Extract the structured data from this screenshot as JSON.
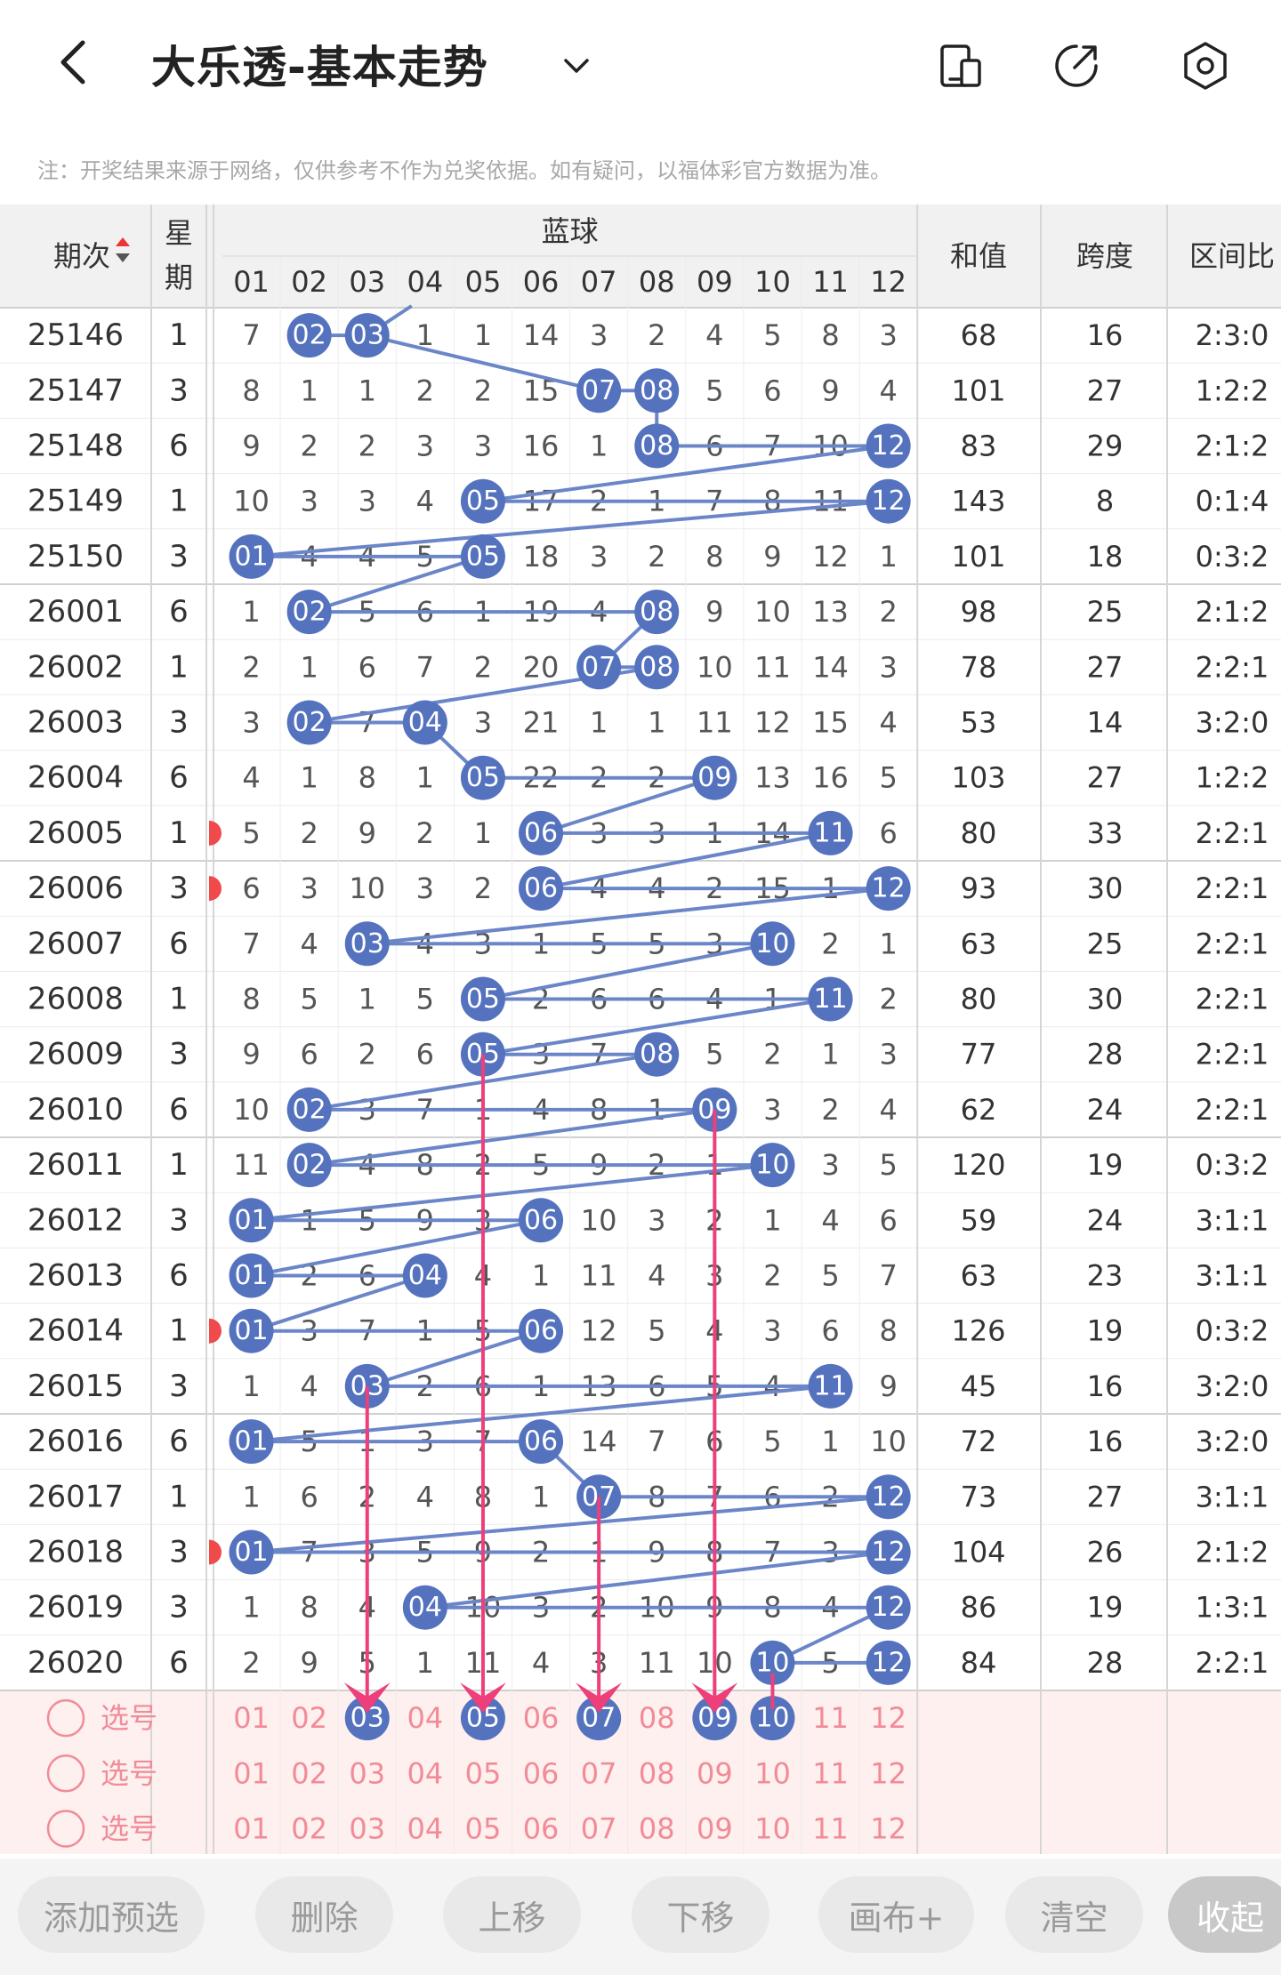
{
  "header": {
    "title": "大乐透-基本走势"
  },
  "notice": "注：开奖结果来源于网络，仅供参考不作为兑奖依据。如有疑问，以福体彩官方数据为准。",
  "table": {
    "col_issue": "期次",
    "col_week": [
      "星",
      "期"
    ],
    "col_blue": "蓝球",
    "col_sum": "和值",
    "col_span": "跨度",
    "col_ratio": "区间比",
    "numbers": [
      "01",
      "02",
      "03",
      "04",
      "05",
      "06",
      "07",
      "08",
      "09",
      "10",
      "11",
      "12"
    ],
    "rows": [
      {
        "issue": "25146",
        "week": "1",
        "cells": [
          "7",
          "02",
          "03",
          "1",
          "1",
          "14",
          "3",
          "2",
          "4",
          "5",
          "8",
          "3"
        ],
        "hits": [
          2,
          3
        ],
        "sum": "68",
        "span": "16",
        "ratio": "2:3:0",
        "mark": false
      },
      {
        "issue": "25147",
        "week": "3",
        "cells": [
          "8",
          "1",
          "1",
          "2",
          "2",
          "15",
          "07",
          "08",
          "5",
          "6",
          "9",
          "4"
        ],
        "hits": [
          7,
          8
        ],
        "sum": "101",
        "span": "27",
        "ratio": "1:2:2",
        "mark": false
      },
      {
        "issue": "25148",
        "week": "6",
        "cells": [
          "9",
          "2",
          "2",
          "3",
          "3",
          "16",
          "1",
          "08",
          "6",
          "7",
          "10",
          "12"
        ],
        "hits": [
          8,
          12
        ],
        "sum": "83",
        "span": "29",
        "ratio": "2:1:2",
        "mark": false
      },
      {
        "issue": "25149",
        "week": "1",
        "cells": [
          "10",
          "3",
          "3",
          "4",
          "05",
          "17",
          "2",
          "1",
          "7",
          "8",
          "11",
          "12"
        ],
        "hits": [
          5,
          12
        ],
        "sum": "143",
        "span": "8",
        "ratio": "0:1:4",
        "mark": false
      },
      {
        "issue": "25150",
        "week": "3",
        "cells": [
          "01",
          "4",
          "4",
          "5",
          "05",
          "18",
          "3",
          "2",
          "8",
          "9",
          "12",
          "1"
        ],
        "hits": [
          1,
          5
        ],
        "sum": "101",
        "span": "18",
        "ratio": "0:3:2",
        "mark": false
      },
      {
        "issue": "26001",
        "week": "6",
        "cells": [
          "1",
          "02",
          "5",
          "6",
          "1",
          "19",
          "4",
          "08",
          "9",
          "10",
          "13",
          "2"
        ],
        "hits": [
          2,
          8
        ],
        "sum": "98",
        "span": "25",
        "ratio": "2:1:2",
        "mark": false
      },
      {
        "issue": "26002",
        "week": "1",
        "cells": [
          "2",
          "1",
          "6",
          "7",
          "2",
          "20",
          "07",
          "08",
          "10",
          "11",
          "14",
          "3"
        ],
        "hits": [
          7,
          8
        ],
        "sum": "78",
        "span": "27",
        "ratio": "2:2:1",
        "mark": false
      },
      {
        "issue": "26003",
        "week": "3",
        "cells": [
          "3",
          "02",
          "7",
          "04",
          "3",
          "21",
          "1",
          "1",
          "11",
          "12",
          "15",
          "4"
        ],
        "hits": [
          2,
          4
        ],
        "sum": "53",
        "span": "14",
        "ratio": "3:2:0",
        "mark": false
      },
      {
        "issue": "26004",
        "week": "6",
        "cells": [
          "4",
          "1",
          "8",
          "1",
          "05",
          "22",
          "2",
          "2",
          "09",
          "13",
          "16",
          "5"
        ],
        "hits": [
          5,
          9
        ],
        "sum": "103",
        "span": "27",
        "ratio": "1:2:2",
        "mark": false
      },
      {
        "issue": "26005",
        "week": "1",
        "cells": [
          "5",
          "2",
          "9",
          "2",
          "1",
          "06",
          "3",
          "3",
          "1",
          "14",
          "11",
          "6"
        ],
        "hits": [
          6,
          11
        ],
        "sum": "80",
        "span": "33",
        "ratio": "2:2:1",
        "mark": true
      },
      {
        "issue": "26006",
        "week": "3",
        "cells": [
          "6",
          "3",
          "10",
          "3",
          "2",
          "06",
          "4",
          "4",
          "2",
          "15",
          "1",
          "12"
        ],
        "hits": [
          6,
          12
        ],
        "sum": "93",
        "span": "30",
        "ratio": "2:2:1",
        "mark": true
      },
      {
        "issue": "26007",
        "week": "6",
        "cells": [
          "7",
          "4",
          "03",
          "4",
          "3",
          "1",
          "5",
          "5",
          "3",
          "10",
          "2",
          "1"
        ],
        "hits": [
          3,
          10
        ],
        "sum": "63",
        "span": "25",
        "ratio": "2:2:1",
        "mark": false
      },
      {
        "issue": "26008",
        "week": "1",
        "cells": [
          "8",
          "5",
          "1",
          "5",
          "05",
          "2",
          "6",
          "6",
          "4",
          "1",
          "11",
          "2"
        ],
        "hits": [
          5,
          11
        ],
        "sum": "80",
        "span": "30",
        "ratio": "2:2:1",
        "mark": false
      },
      {
        "issue": "26009",
        "week": "3",
        "cells": [
          "9",
          "6",
          "2",
          "6",
          "05",
          "3",
          "7",
          "08",
          "5",
          "2",
          "1",
          "3"
        ],
        "hits": [
          5,
          8
        ],
        "sum": "77",
        "span": "28",
        "ratio": "2:2:1",
        "mark": false
      },
      {
        "issue": "26010",
        "week": "6",
        "cells": [
          "10",
          "02",
          "3",
          "7",
          "1",
          "4",
          "8",
          "1",
          "09",
          "3",
          "2",
          "4"
        ],
        "hits": [
          2,
          9
        ],
        "sum": "62",
        "span": "24",
        "ratio": "2:2:1",
        "mark": false
      },
      {
        "issue": "26011",
        "week": "1",
        "cells": [
          "11",
          "02",
          "4",
          "8",
          "2",
          "5",
          "9",
          "2",
          "1",
          "10",
          "3",
          "5"
        ],
        "hits": [
          2,
          10
        ],
        "sum": "120",
        "span": "19",
        "ratio": "0:3:2",
        "mark": false
      },
      {
        "issue": "26012",
        "week": "3",
        "cells": [
          "01",
          "1",
          "5",
          "9",
          "3",
          "06",
          "10",
          "3",
          "2",
          "1",
          "4",
          "6"
        ],
        "hits": [
          1,
          6
        ],
        "sum": "59",
        "span": "24",
        "ratio": "3:1:1",
        "mark": false
      },
      {
        "issue": "26013",
        "week": "6",
        "cells": [
          "01",
          "2",
          "6",
          "04",
          "4",
          "1",
          "11",
          "4",
          "3",
          "2",
          "5",
          "7"
        ],
        "hits": [
          1,
          4
        ],
        "sum": "63",
        "span": "23",
        "ratio": "3:1:1",
        "mark": false
      },
      {
        "issue": "26014",
        "week": "1",
        "cells": [
          "01",
          "3",
          "7",
          "1",
          "5",
          "06",
          "12",
          "5",
          "4",
          "3",
          "6",
          "8"
        ],
        "hits": [
          1,
          6
        ],
        "sum": "126",
        "span": "19",
        "ratio": "0:3:2",
        "mark": true
      },
      {
        "issue": "26015",
        "week": "3",
        "cells": [
          "1",
          "4",
          "03",
          "2",
          "6",
          "1",
          "13",
          "6",
          "5",
          "4",
          "11",
          "9"
        ],
        "hits": [
          3,
          11
        ],
        "sum": "45",
        "span": "16",
        "ratio": "3:2:0",
        "mark": false
      },
      {
        "issue": "26016",
        "week": "6",
        "cells": [
          "01",
          "5",
          "1",
          "3",
          "7",
          "06",
          "14",
          "7",
          "6",
          "5",
          "1",
          "10"
        ],
        "hits": [
          1,
          6
        ],
        "sum": "72",
        "span": "16",
        "ratio": "3:2:0",
        "mark": false
      },
      {
        "issue": "26017",
        "week": "1",
        "cells": [
          "1",
          "6",
          "2",
          "4",
          "8",
          "1",
          "07",
          "8",
          "7",
          "6",
          "2",
          "12"
        ],
        "hits": [
          7,
          12
        ],
        "sum": "73",
        "span": "27",
        "ratio": "3:1:1",
        "mark": false
      },
      {
        "issue": "26018",
        "week": "3",
        "cells": [
          "01",
          "7",
          "3",
          "5",
          "9",
          "2",
          "1",
          "9",
          "8",
          "7",
          "3",
          "12"
        ],
        "hits": [
          1,
          12
        ],
        "sum": "104",
        "span": "26",
        "ratio": "2:1:2",
        "mark": true
      },
      {
        "issue": "26019",
        "week": "3",
        "cells": [
          "1",
          "8",
          "4",
          "04",
          "10",
          "3",
          "2",
          "10",
          "9",
          "8",
          "4",
          "12"
        ],
        "hits": [
          4,
          12
        ],
        "sum": "86",
        "span": "19",
        "ratio": "1:3:1",
        "mark": false
      },
      {
        "issue": "26020",
        "week": "6",
        "cells": [
          "2",
          "9",
          "5",
          "1",
          "11",
          "4",
          "3",
          "11",
          "10",
          "10",
          "5",
          "12"
        ],
        "hits": [
          10,
          12
        ],
        "sum": "84",
        "span": "28",
        "ratio": "2:2:1",
        "mark": false
      }
    ],
    "pick_label": "选号",
    "pick_selected": [
      3,
      5,
      7,
      9,
      10
    ],
    "arrow_cols": [
      3,
      5,
      7,
      9,
      10
    ]
  },
  "buttons": {
    "add": "添加预选",
    "delete": "删除",
    "up": "上移",
    "down": "下移",
    "canvas": "画布+",
    "clear": "清空",
    "collapse": "收起"
  },
  "colors": {
    "ball": "#5472be",
    "line": "#6b86c8",
    "arrow": "#ee3f7a",
    "pick_text": "#f28b98",
    "pick_bg": "#fdf0ee",
    "header_bg": "#f1f1f1"
  },
  "icons": [
    "back-icon",
    "chevron-down-icon",
    "phone-icon",
    "external-link-icon",
    "settings-icon"
  ]
}
